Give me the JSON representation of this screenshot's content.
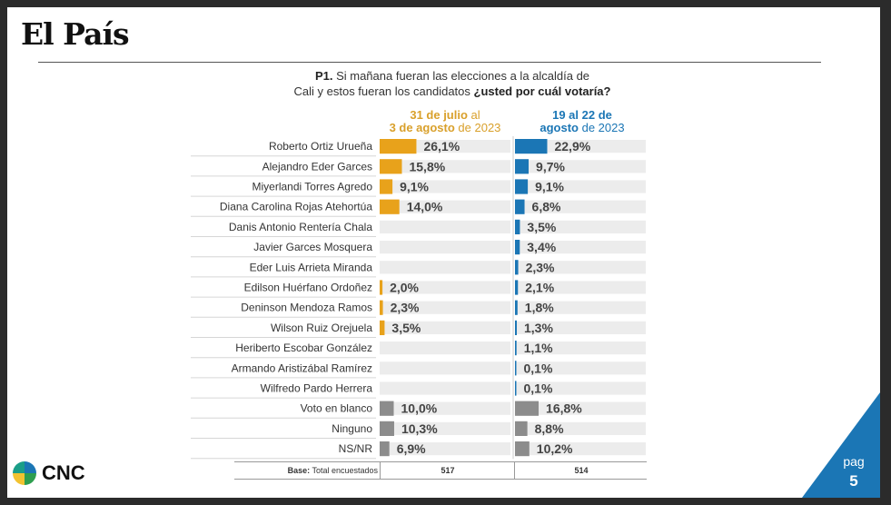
{
  "brand": {
    "logo": "El País",
    "footer_logo": "CNC"
  },
  "question": {
    "num": "P1.",
    "line1": " Si mañana fueran las elecciones a la alcaldía de",
    "line2_plain": "Cali y estos fueran los candidatos ",
    "line2_bold": "¿usted por cuál votaría?"
  },
  "columns": [
    {
      "line1_bold": "31 de julio",
      "line1_rest": " al",
      "line2_bold": "3 de agosto",
      "line2_rest": " de 2023"
    },
    {
      "line1_bold": "19 al 22 de",
      "line1_rest": "",
      "line2_bold": "agosto",
      "line2_rest": " de 2023"
    }
  ],
  "base": {
    "label_bold": "Base:",
    "label_rest": " Total encuestados",
    "values": [
      "517",
      "514"
    ]
  },
  "page": {
    "label": "pag",
    "number": "5"
  },
  "colors": {
    "orange": "#E8A21B",
    "blue": "#1B76B5",
    "gray": "#8C8C8C",
    "track": "#ECECEC"
  },
  "chart_data": {
    "type": "bar",
    "categories": [
      "Roberto Ortiz Urueña",
      "Alejandro Eder Garces",
      "Miyerlandi Torres Agredo",
      "Diana Carolina Rojas Atehortúa",
      "Danis Antonio Rentería Chala",
      "Javier Garces Mosquera",
      "Eder Luis Arrieta Miranda",
      "Edilson Huérfano Ordoñez",
      "Deninson Mendoza Ramos",
      "Wilson Ruiz Orejuela",
      "Heriberto Escobar González",
      "Armando Aristizábal Ramírez",
      "Wilfredo Pardo Herrera",
      "Voto en blanco",
      "Ninguno",
      "NS/NR"
    ],
    "series": [
      {
        "name": "31 de julio al 3 de agosto de 2023",
        "values": [
          26.1,
          15.8,
          9.1,
          14.0,
          null,
          null,
          null,
          2.0,
          2.3,
          3.5,
          null,
          null,
          null,
          10.0,
          10.3,
          6.9
        ],
        "labels": [
          "26,1%",
          "15,8%",
          "9,1%",
          "14,0%",
          "",
          "",
          "",
          "2,0%",
          "2,3%",
          "3,5%",
          "",
          "",
          "",
          "10,0%",
          "10,3%",
          "6,9%"
        ]
      },
      {
        "name": "19 al 22 de agosto de 2023",
        "values": [
          22.9,
          9.7,
          9.1,
          6.8,
          3.5,
          3.4,
          2.3,
          2.1,
          1.8,
          1.3,
          1.1,
          0.1,
          0.1,
          16.8,
          8.8,
          10.2
        ],
        "labels": [
          "22,9%",
          "9,7%",
          "9,1%",
          "6,8%",
          "3,5%",
          "3,4%",
          "2,3%",
          "2,1%",
          "1,8%",
          "1,3%",
          "1,1%",
          "0,1%",
          "0,1%",
          "16,8%",
          "8,8%",
          "10,2%"
        ]
      }
    ],
    "gray_categories": [
      "Voto en blanco",
      "Ninguno",
      "NS/NR"
    ],
    "xlim": [
      0,
      100
    ]
  }
}
